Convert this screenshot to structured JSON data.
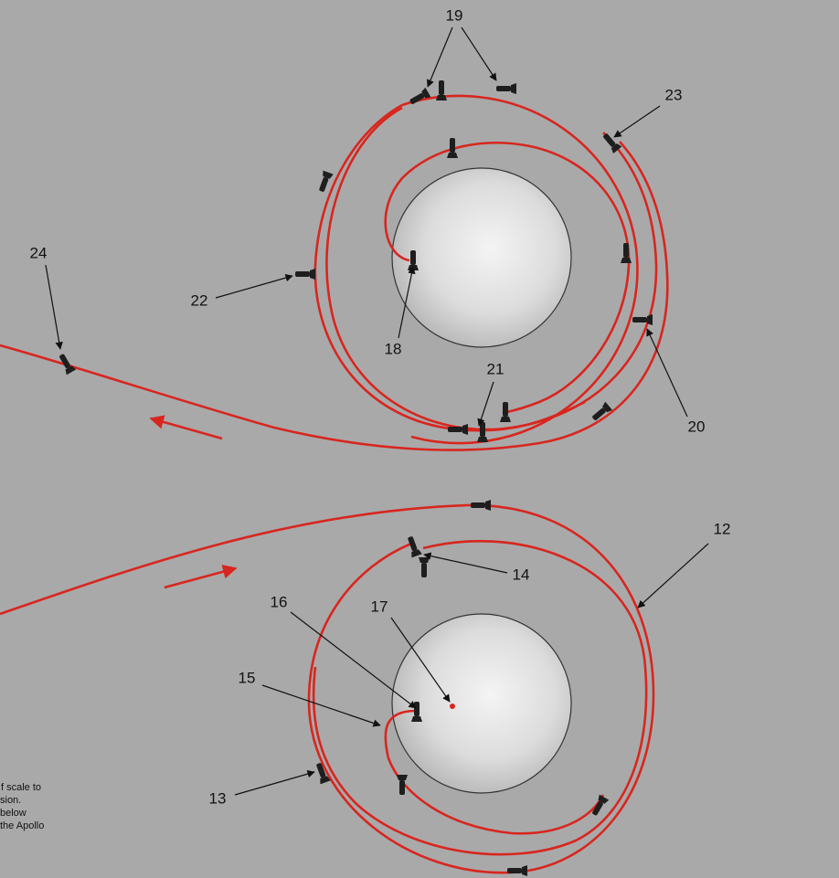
{
  "labels": [
    "19",
    "23",
    "24",
    "22",
    "18",
    "21",
    "20",
    "12",
    "14",
    "16",
    "17",
    "15",
    "13"
  ],
  "note": [
    "f scale to",
    "sion.",
    "below",
    "the Apollo"
  ]
}
